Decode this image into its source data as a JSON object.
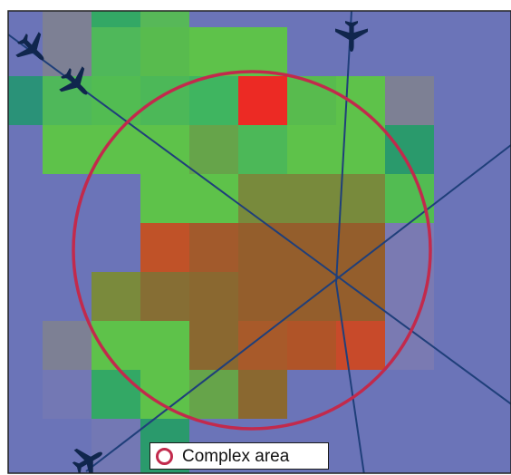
{
  "colors": {
    "background": "#6b74b8",
    "circle": "#c22a4c",
    "route": "#1f3f7a",
    "aircraft": "#10264d"
  },
  "legend": {
    "label": "Complex area",
    "icon": "circle-outline-icon"
  },
  "aircraft_icons": [
    "airplane-icon",
    "airplane-icon",
    "airplane-icon",
    "airplane-icon"
  ]
}
